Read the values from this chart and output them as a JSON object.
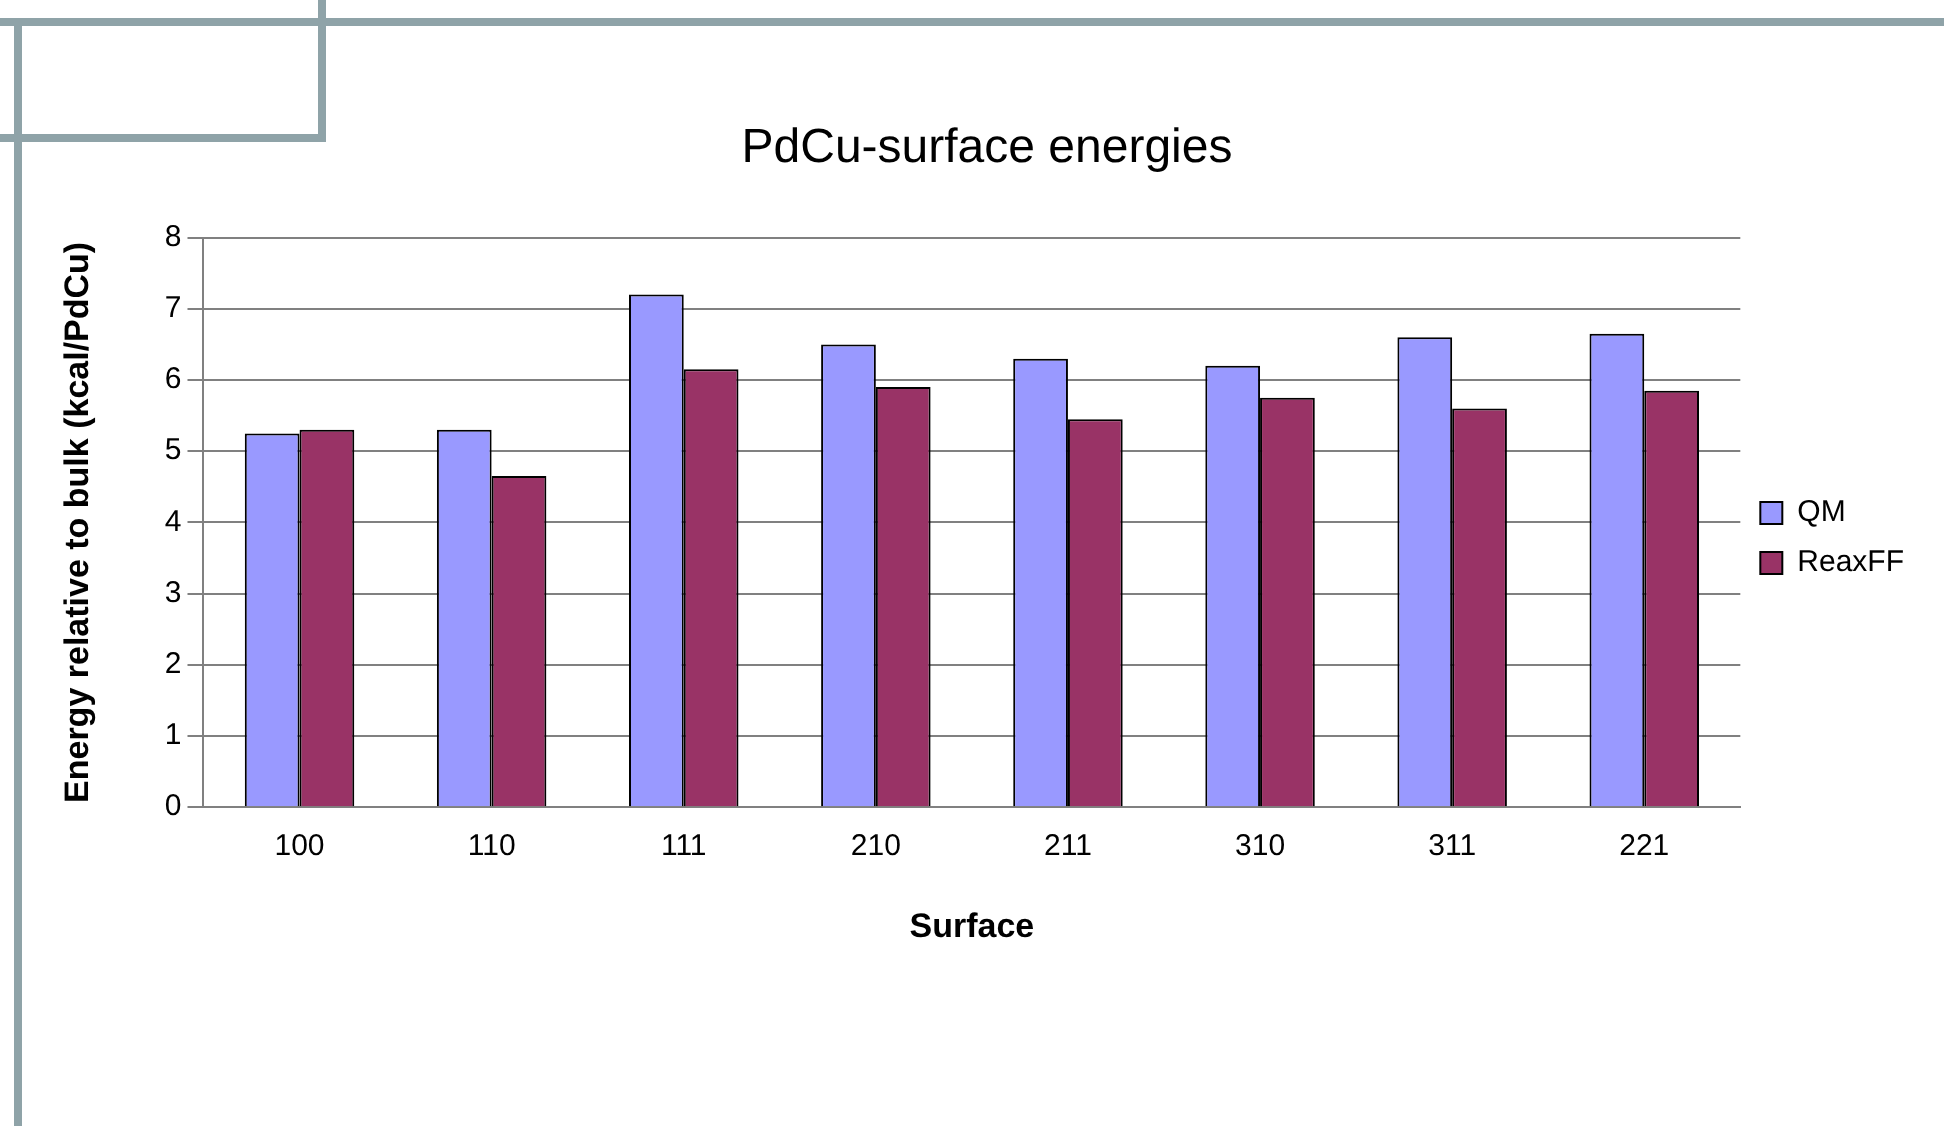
{
  "chart_data": {
    "type": "bar",
    "title": "PdCu-surface energies",
    "xlabel": "Surface",
    "ylabel": "Energy relative to bulk (kcal/PdCu)",
    "categories": [
      "100",
      "110",
      "111",
      "210",
      "211",
      "310",
      "311",
      "221"
    ],
    "series": [
      {
        "name": "QM",
        "color": "#9999ff",
        "values": [
          5.25,
          5.3,
          7.2,
          6.5,
          6.3,
          6.2,
          6.6,
          6.65
        ]
      },
      {
        "name": "ReaxFF",
        "color": "#993366",
        "values": [
          5.3,
          4.65,
          6.15,
          5.9,
          5.45,
          5.75,
          5.6,
          5.85
        ]
      }
    ],
    "ylim": [
      0,
      8
    ],
    "yticks": [
      0,
      1,
      2,
      3,
      4,
      5,
      6,
      7,
      8
    ],
    "grid": "y",
    "legend": "right"
  }
}
